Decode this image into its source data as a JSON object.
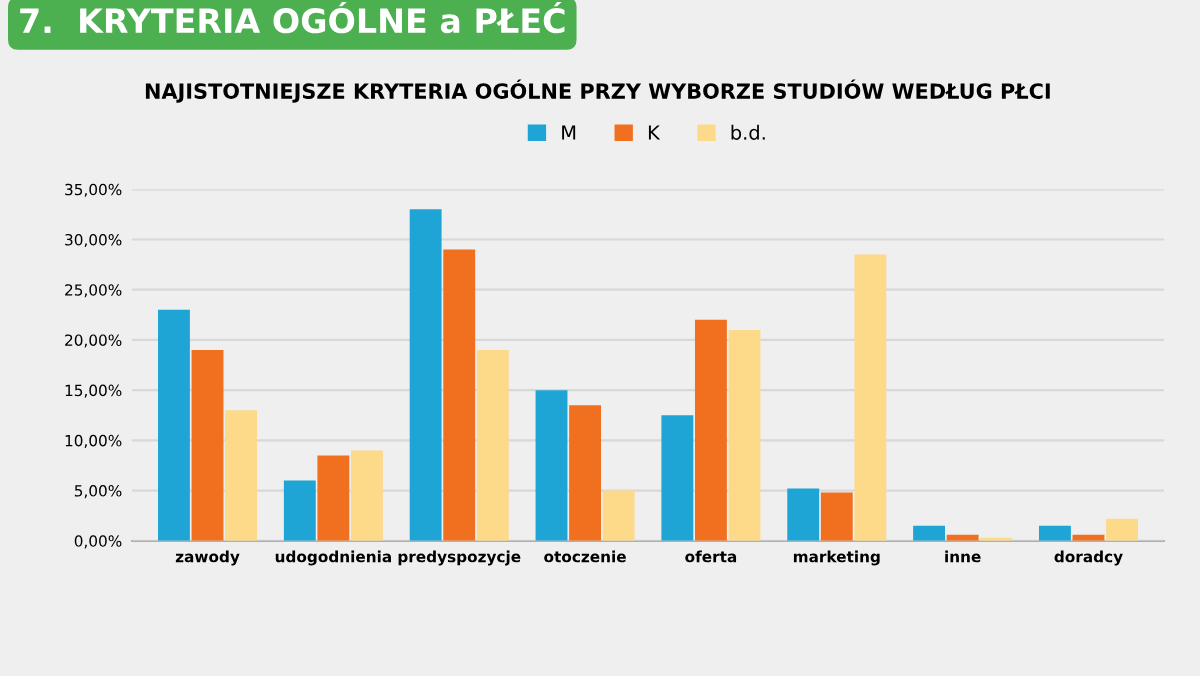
{
  "chart_data": {
    "type": "bar",
    "title": "7.  KRYTERIA OGÓLNE a PŁEĆ",
    "subtitle": "NAJISTOTNIEJSZE KRYTERIA OGÓLNE PRZY WYBORZE STUDIÓW WEDŁUG PŁCI",
    "categories": [
      "zawody",
      "udogodnienia",
      "predyspozycje",
      "otoczenie",
      "oferta",
      "marketing",
      "inne",
      "doradcy"
    ],
    "series": [
      {
        "name": "M",
        "color": "#1ea5d6",
        "values": [
          23,
          6,
          33,
          15,
          12.5,
          5.2,
          1.5,
          1.5
        ]
      },
      {
        "name": "K",
        "color": "#f07020",
        "values": [
          19,
          8.5,
          29,
          13.5,
          22,
          4.8,
          0.6,
          0.6
        ]
      },
      {
        "name": "b.d.",
        "color": "#fdd98a",
        "values": [
          13,
          9,
          19,
          5,
          21,
          28.5,
          0.3,
          2.2
        ]
      }
    ],
    "ylim": [
      0,
      35
    ],
    "yticks": [
      {
        "value": 0,
        "label": "0,00%"
      },
      {
        "value": 5,
        "label": "5,00%"
      },
      {
        "value": 10,
        "label": "10,00%"
      },
      {
        "value": 15,
        "label": "15,00%"
      },
      {
        "value": 20,
        "label": "20,00%"
      },
      {
        "value": 25,
        "label": "25,00%"
      },
      {
        "value": 30,
        "label": "30,00%"
      },
      {
        "value": 35,
        "label": "35,00%"
      }
    ],
    "grid": "y",
    "legend": "top"
  }
}
